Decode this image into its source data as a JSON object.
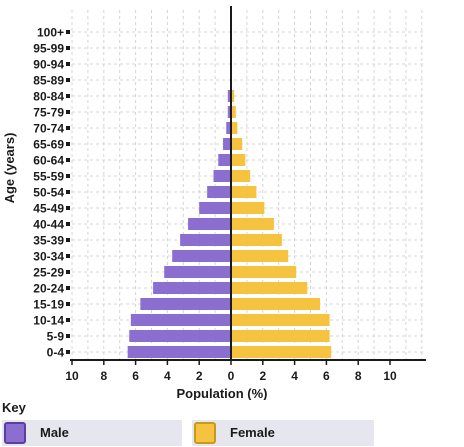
{
  "chart_data": {
    "type": "bar",
    "orientation": "horizontal",
    "layout": "population-pyramid",
    "xlabel": "Population (%)",
    "ylabel": "Age (years)",
    "xlim": [
      -10,
      10
    ],
    "x_ticks": [
      -10,
      -8,
      -6,
      -4,
      -2,
      0,
      2,
      4,
      6,
      8,
      10
    ],
    "x_tick_labels": [
      "10",
      "8",
      "6",
      "4",
      "2",
      "0",
      "2",
      "4",
      "6",
      "8",
      "10"
    ],
    "grid": true,
    "categories": [
      "0-4",
      "5-9",
      "10-14",
      "15-19",
      "20-24",
      "25-29",
      "30-34",
      "35-39",
      "40-44",
      "45-49",
      "50-54",
      "55-59",
      "60-64",
      "65-69",
      "70-74",
      "75-79",
      "80-84",
      "85-89",
      "90-94",
      "95-99",
      "100+"
    ],
    "series": [
      {
        "name": "Male",
        "color": "#8a6fd1",
        "values": [
          6.5,
          6.4,
          6.3,
          5.7,
          4.9,
          4.2,
          3.7,
          3.2,
          2.7,
          2.0,
          1.5,
          1.1,
          0.8,
          0.5,
          0.3,
          0.2,
          0.2,
          0,
          0,
          0,
          0
        ]
      },
      {
        "name": "Female",
        "color": "#f5c33f",
        "values": [
          6.3,
          6.2,
          6.2,
          5.6,
          4.8,
          4.1,
          3.6,
          3.2,
          2.7,
          2.1,
          1.6,
          1.2,
          0.9,
          0.7,
          0.4,
          0.3,
          0.2,
          0,
          0,
          0,
          0
        ]
      }
    ]
  },
  "key": {
    "title": "Key",
    "male_label": "Male",
    "female_label": "Female"
  }
}
